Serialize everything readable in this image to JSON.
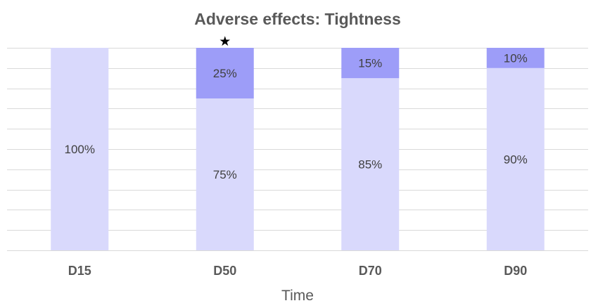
{
  "chart_data": {
    "type": "bar",
    "stacked": true,
    "normalized_percent": true,
    "title": "Adverse effects: Tightness",
    "xlabel": "Time",
    "ylabel": "",
    "categories": [
      "D15",
      "D50",
      "D70",
      "D90"
    ],
    "series": [
      {
        "color": "#d9d9fc",
        "values": [
          100,
          75,
          85,
          90
        ],
        "labels": [
          "100%",
          "75%",
          "85%",
          "90%"
        ]
      },
      {
        "color": "#9d9df8",
        "values": [
          0,
          25,
          15,
          10
        ],
        "labels": [
          "",
          "25%",
          "15%",
          "10%"
        ]
      }
    ],
    "ylim": [
      0,
      100
    ],
    "grid": true,
    "legend": "none",
    "annotations": [
      {
        "category": "D50",
        "text": "★"
      }
    ]
  }
}
